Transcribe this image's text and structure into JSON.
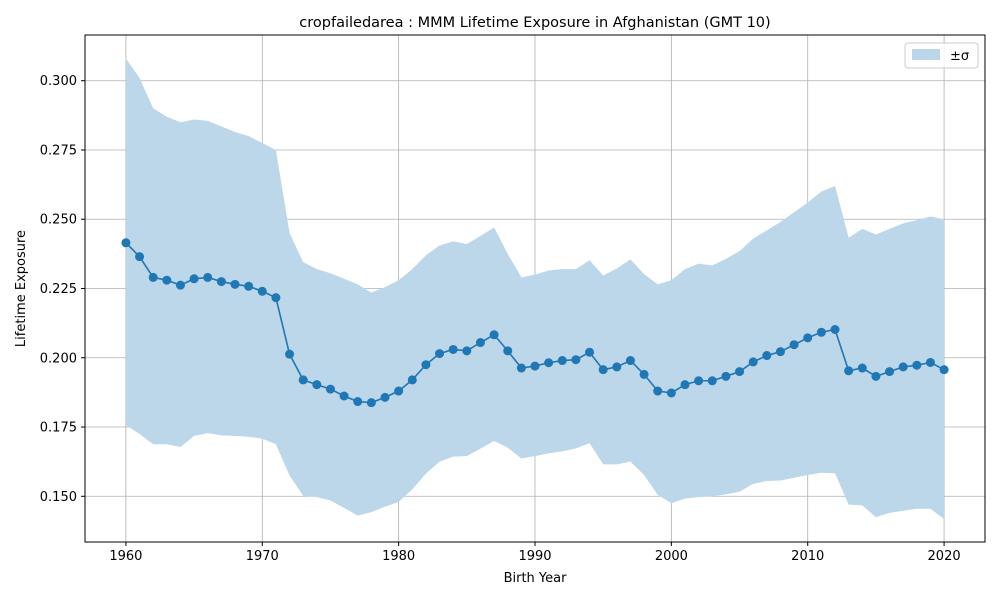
{
  "chart_data": {
    "type": "line",
    "title": "cropfailedarea : MMM Lifetime Exposure in Afghanistan (GMT 10)",
    "xlabel": "Birth Year",
    "ylabel": "Lifetime Exposure",
    "xlim": [
      1957,
      2023
    ],
    "ylim": [
      0.1335,
      0.3165
    ],
    "xticks": [
      1960,
      1970,
      1980,
      1990,
      2000,
      2010,
      2020
    ],
    "xtick_labels": [
      "1960",
      "1970",
      "1980",
      "1990",
      "2000",
      "2010",
      "2020"
    ],
    "yticks": [
      0.15,
      0.175,
      0.2,
      0.225,
      0.25,
      0.275,
      0.3
    ],
    "ytick_labels": [
      "0.150",
      "0.175",
      "0.200",
      "0.225",
      "0.250",
      "0.275",
      "0.300"
    ],
    "grid": true,
    "legend": {
      "placement": "top-right",
      "label": "±σ"
    },
    "colors": {
      "line": "#1f77b4",
      "band": "#bcd6ea",
      "grid": "#b0b0b0"
    },
    "x": [
      1960,
      1961,
      1962,
      1963,
      1964,
      1965,
      1966,
      1967,
      1968,
      1969,
      1970,
      1971,
      1972,
      1973,
      1974,
      1975,
      1976,
      1977,
      1978,
      1979,
      1980,
      1981,
      1982,
      1983,
      1984,
      1985,
      1986,
      1987,
      1988,
      1989,
      1990,
      1991,
      1992,
      1993,
      1994,
      1995,
      1996,
      1997,
      1998,
      1999,
      2000,
      2001,
      2002,
      2003,
      2004,
      2005,
      2006,
      2007,
      2008,
      2009,
      2010,
      2011,
      2012,
      2013,
      2014,
      2015,
      2016,
      2017,
      2018,
      2019,
      2020
    ],
    "series": [
      {
        "values": [
          0.2415,
          0.2365,
          0.229,
          0.228,
          0.2262,
          0.2285,
          0.229,
          0.2275,
          0.2265,
          0.2258,
          0.224,
          0.2217,
          0.2013,
          0.192,
          0.1903,
          0.1887,
          0.1862,
          0.1842,
          0.1838,
          0.1857,
          0.188,
          0.192,
          0.1975,
          0.2015,
          0.203,
          0.2025,
          0.2055,
          0.2083,
          0.2025,
          0.1963,
          0.197,
          0.1982,
          0.199,
          0.1993,
          0.202,
          0.1957,
          0.1967,
          0.199,
          0.194,
          0.188,
          0.1873,
          0.1903,
          0.1917,
          0.1917,
          0.1933,
          0.195,
          0.1985,
          0.2008,
          0.2022,
          0.2047,
          0.2072,
          0.2092,
          0.2102,
          0.1953,
          0.1963,
          0.1933,
          0.195,
          0.1967,
          0.1973,
          0.1983,
          0.1957
        ]
      }
    ],
    "band_upper": [
      0.308,
      0.301,
      0.29,
      0.287,
      0.285,
      0.286,
      0.2855,
      0.2835,
      0.2815,
      0.28,
      0.2775,
      0.275,
      0.245,
      0.2345,
      0.232,
      0.2305,
      0.2285,
      0.2265,
      0.2235,
      0.2255,
      0.228,
      0.232,
      0.237,
      0.2405,
      0.242,
      0.241,
      0.244,
      0.247,
      0.2375,
      0.229,
      0.23,
      0.2315,
      0.232,
      0.232,
      0.2352,
      0.2297,
      0.2322,
      0.2355,
      0.2302,
      0.2265,
      0.228,
      0.232,
      0.234,
      0.2333,
      0.2357,
      0.2385,
      0.243,
      0.246,
      0.249,
      0.2525,
      0.256,
      0.26,
      0.262,
      0.2433,
      0.2465,
      0.2445,
      0.2465,
      0.2485,
      0.2497,
      0.251,
      0.25
    ],
    "band_lower": [
      0.1757,
      0.1725,
      0.1688,
      0.1688,
      0.1678,
      0.1718,
      0.1728,
      0.172,
      0.1718,
      0.1715,
      0.1708,
      0.1688,
      0.1575,
      0.1502,
      0.1497,
      0.1485,
      0.1458,
      0.143,
      0.1443,
      0.1462,
      0.148,
      0.1525,
      0.1582,
      0.1625,
      0.1643,
      0.1645,
      0.1672,
      0.17,
      0.1675,
      0.1637,
      0.1645,
      0.1655,
      0.1662,
      0.1673,
      0.1692,
      0.1615,
      0.1615,
      0.1625,
      0.1577,
      0.1505,
      0.1475,
      0.1492,
      0.1497,
      0.15,
      0.1507,
      0.1517,
      0.1545,
      0.1555,
      0.1557,
      0.1567,
      0.1577,
      0.1585,
      0.1583,
      0.147,
      0.1467,
      0.1425,
      0.144,
      0.1448,
      0.1455,
      0.1455,
      0.1418
    ]
  }
}
